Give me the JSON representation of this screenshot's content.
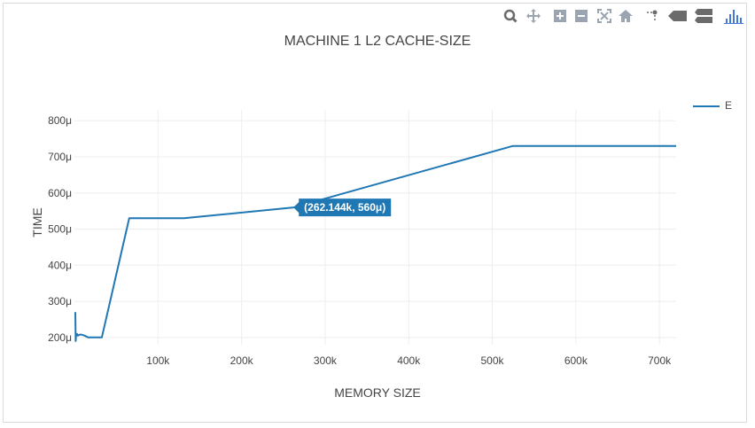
{
  "modebar": {
    "buttons": [
      "zoom-icon",
      "pan-icon",
      "zoom-in-icon",
      "zoom-out-icon",
      "autoscale-icon",
      "reset-axes-icon",
      "spike-lines-icon",
      "hover-closest-icon",
      "hover-compare-icon",
      "plotly-logo-icon"
    ]
  },
  "colors": {
    "series": "#1f77b4",
    "grid": "#eeeeee",
    "text": "#444444"
  },
  "chart_data": {
    "type": "line",
    "title": "MACHINE 1 L2 CACHE-SIZE",
    "xlabel": "MEMORY SIZE",
    "ylabel": "TIME",
    "xlim": [
      0,
      720000
    ],
    "ylim": [
      180,
      830
    ],
    "grid": true,
    "legend_position": "top-right",
    "x_ticks": [
      100000,
      200000,
      300000,
      400000,
      500000,
      600000,
      700000
    ],
    "x_tick_labels": [
      "100k",
      "200k",
      "300k",
      "400k",
      "500k",
      "600k",
      "700k"
    ],
    "y_ticks": [
      200,
      300,
      400,
      500,
      600,
      700,
      800
    ],
    "y_tick_labels": [
      "200μ",
      "300μ",
      "400μ",
      "500μ",
      "600μ",
      "700μ",
      "800μ"
    ],
    "series": [
      {
        "name": "E",
        "x": [
          1024,
          1536,
          2048,
          3072,
          4096,
          6144,
          8192,
          12288,
          16384,
          24576,
          32768,
          65536,
          131072,
          262144,
          524288,
          720000
        ],
        "y": [
          270,
          190,
          208,
          210,
          205,
          208,
          208,
          205,
          200,
          200,
          200,
          530,
          530,
          560,
          730,
          730
        ]
      }
    ],
    "hover": {
      "x": 262144,
      "y": 560,
      "text": "(262.144k, 560μ)"
    }
  }
}
